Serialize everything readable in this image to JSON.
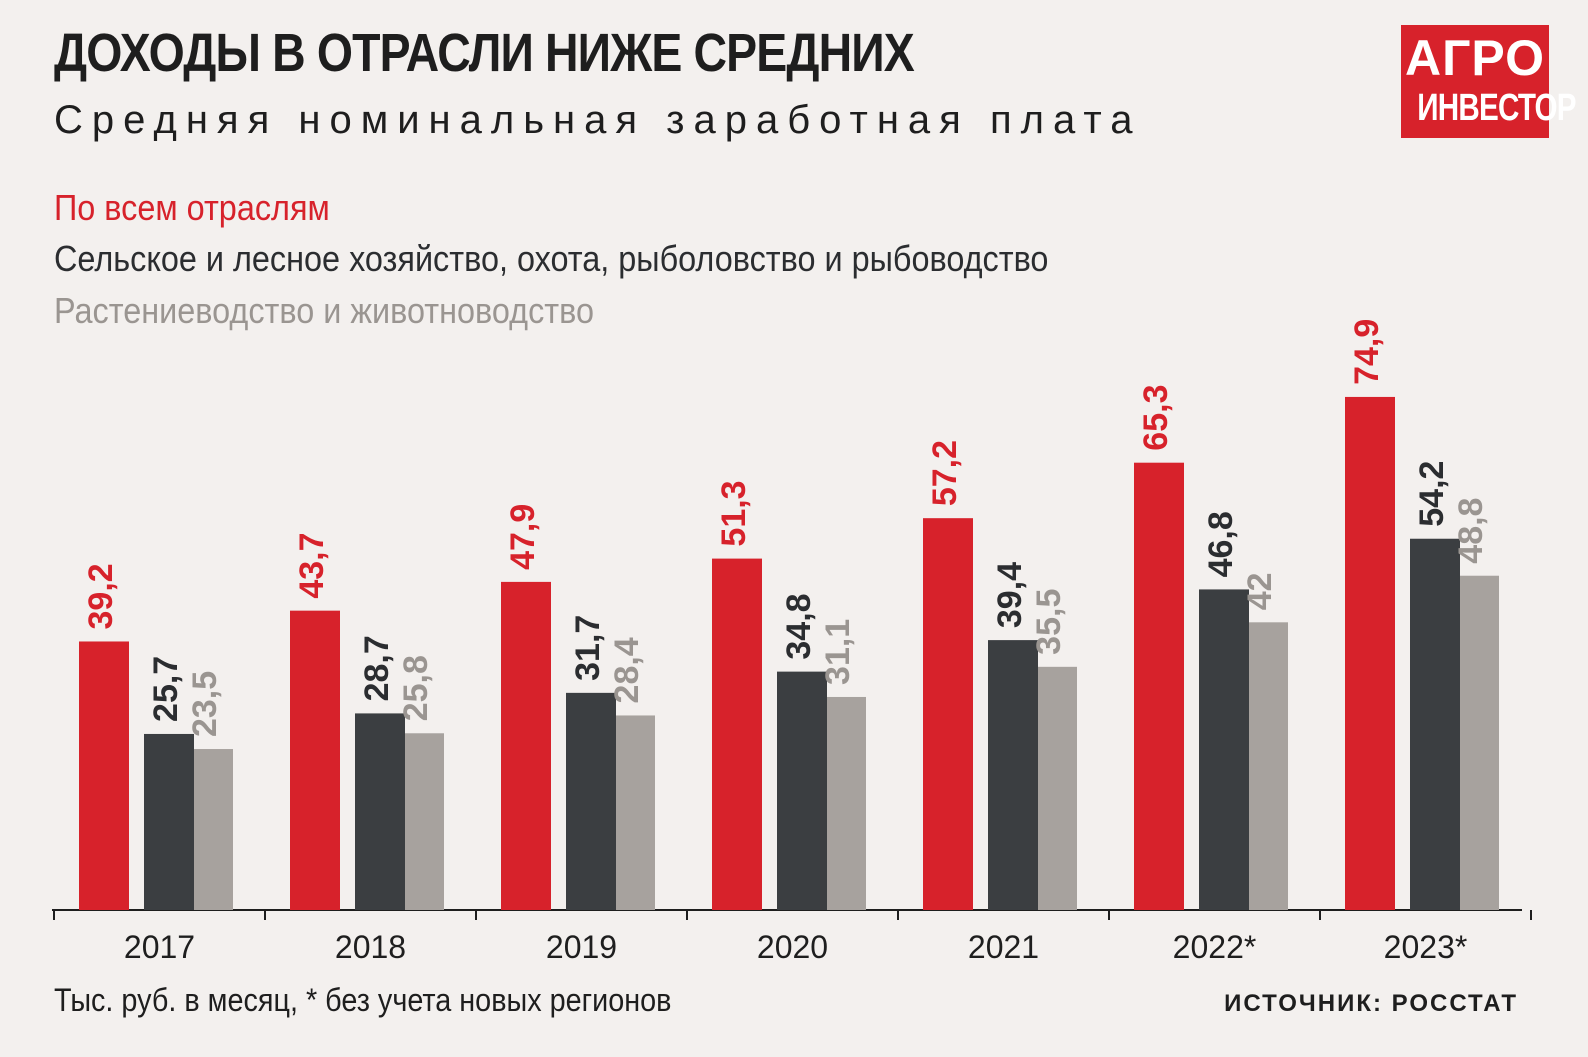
{
  "header": {
    "title": "ДОХОДЫ В ОТРАСЛИ НИЖЕ СРЕДНИХ",
    "subtitle": "Средняя номинальная заработная плата"
  },
  "logo": {
    "line1": "АГРО",
    "line2": "ИНВЕСТОР"
  },
  "footer": {
    "note": "Тыс. руб. в месяц, * без учета новых регионов",
    "source": "ИСТОЧНИК: РОССТАТ"
  },
  "colors": {
    "all": "#d7222b",
    "agri": "#3b3e41",
    "crop": "#a7a29e",
    "background": "#f3f0ee"
  },
  "chart_data": {
    "type": "bar",
    "categories": [
      "2017",
      "2018",
      "2019",
      "2020",
      "2021",
      "2022*",
      "2023*"
    ],
    "series": [
      {
        "name": "По всем отраслям",
        "color": "#d7222b",
        "values": [
          39.2,
          43.7,
          47.9,
          51.3,
          57.2,
          65.3,
          74.9
        ],
        "labels": [
          "39,2",
          "43,7",
          "47,9",
          "51,3",
          "57,2",
          "65,3",
          "74,9"
        ]
      },
      {
        "name": "Сельское и лесное хозяйство, охота, рыболовство и рыбоводство",
        "color": "#3b3e41",
        "values": [
          25.7,
          28.7,
          31.7,
          34.8,
          39.4,
          46.8,
          54.2
        ],
        "labels": [
          "25,7",
          "28,7",
          "31,7",
          "34,8",
          "39,4",
          "46,8",
          "54,2"
        ]
      },
      {
        "name": "Растениеводство и животноводство",
        "color": "#a7a29e",
        "values": [
          23.5,
          25.8,
          28.4,
          31.1,
          35.5,
          42,
          48.8
        ],
        "labels": [
          "23,5",
          "25,8",
          "28,4",
          "31,1",
          "35,5",
          "42",
          "48,8"
        ]
      }
    ],
    "ylim": [
      0,
      100
    ],
    "legend": "top-left",
    "grid": false
  }
}
